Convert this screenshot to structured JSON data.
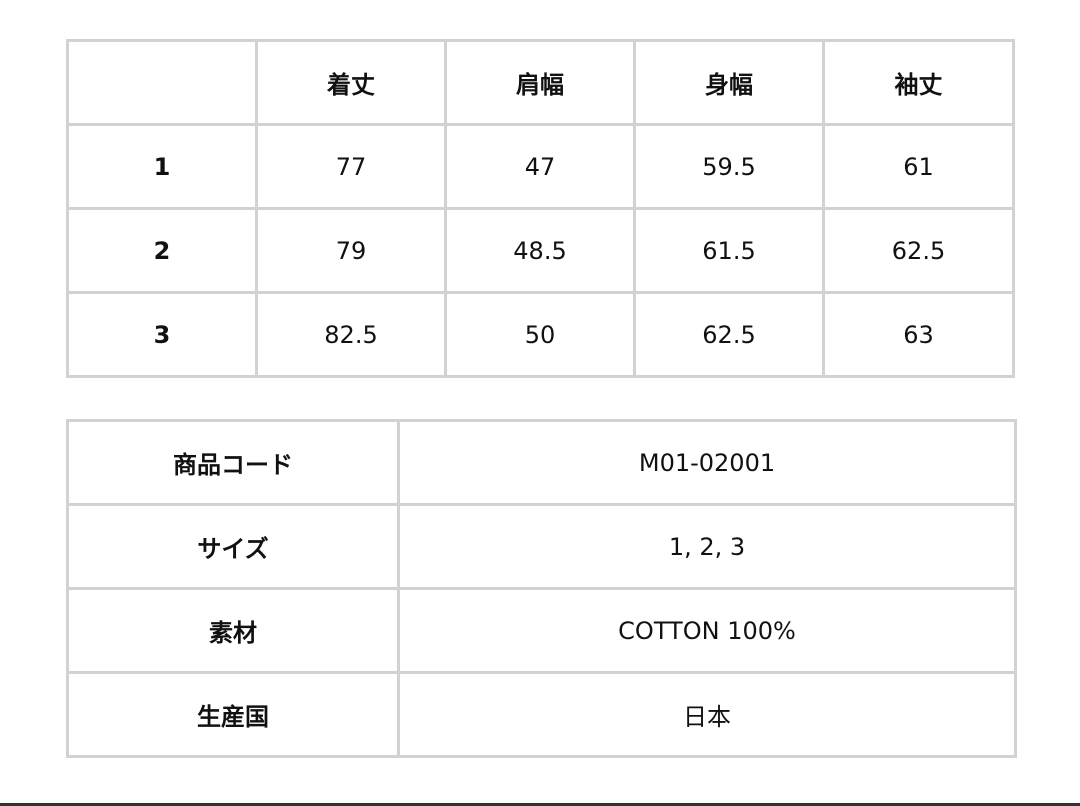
{
  "size_table": {
    "headers": [
      "",
      "着丈",
      "肩幅",
      "身幅",
      "袖丈"
    ],
    "rows": [
      {
        "size": "1",
        "values": [
          "77",
          "47",
          "59.5",
          "61"
        ]
      },
      {
        "size": "2",
        "values": [
          "79",
          "48.5",
          "61.5",
          "62.5"
        ]
      },
      {
        "size": "3",
        "values": [
          "82.5",
          "50",
          "62.5",
          "63"
        ]
      }
    ]
  },
  "spec_table": {
    "rows": [
      {
        "label": "商品コード",
        "value": "M01-02001"
      },
      {
        "label": "サイズ",
        "value": "1, 2, 3"
      },
      {
        "label": "素材",
        "value": "COTTON 100%"
      },
      {
        "label": "生産国",
        "value": "日本"
      }
    ]
  },
  "colors": {
    "border": "#d2d2d2",
    "text": "#111111"
  }
}
